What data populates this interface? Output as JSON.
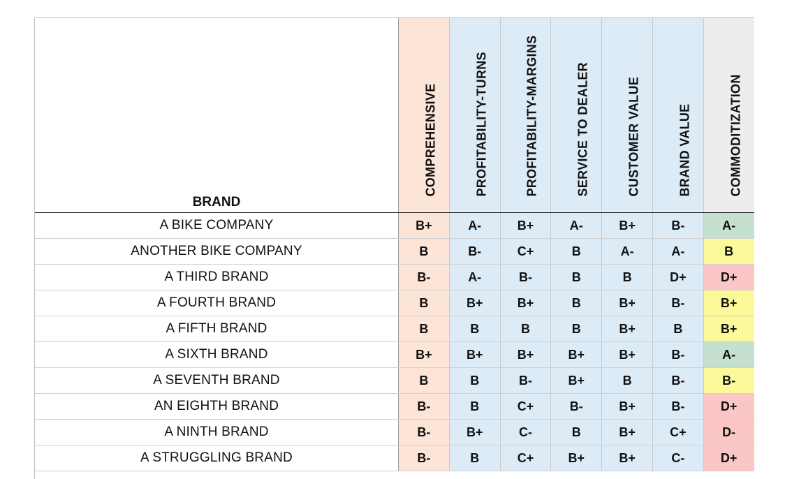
{
  "table": {
    "brand_header": "BRAND",
    "columns": [
      {
        "label": "COMPREHENSIVE",
        "bg": "#fce4d6"
      },
      {
        "label": "PROFITABILITY-TURNS",
        "bg": "#ddebf7"
      },
      {
        "label": "PROFITABILITY-MARGINS",
        "bg": "#ddebf7"
      },
      {
        "label": "SERVICE TO DEALER",
        "bg": "#ddebf7"
      },
      {
        "label": "CUSTOMER VALUE",
        "bg": "#ddebf7"
      },
      {
        "label": "BRAND VALUE",
        "bg": "#ddebf7"
      },
      {
        "label": "COMMODITIZATION",
        "bg": "#ededed"
      }
    ],
    "grade_colors": {
      "A": "#c6e0d0",
      "B": "#fbf99a",
      "D": "#fbc6c6"
    },
    "rows": [
      {
        "brand": "A BIKE COMPANY",
        "grades": [
          "B+",
          "A-",
          "B+",
          "A-",
          "B+",
          "B-",
          "A-"
        ]
      },
      {
        "brand": "ANOTHER BIKE COMPANY",
        "grades": [
          "B",
          "B-",
          "C+",
          "B",
          "A-",
          "A-",
          "B"
        ]
      },
      {
        "brand": "A THIRD BRAND",
        "grades": [
          "B-",
          "A-",
          "B-",
          "B",
          "B",
          "D+",
          "D+"
        ]
      },
      {
        "brand": "A FOURTH BRAND",
        "grades": [
          "B",
          "B+",
          "B+",
          "B",
          "B+",
          "B-",
          "B+"
        ]
      },
      {
        "brand": "A FIFTH BRAND",
        "grades": [
          "B",
          "B",
          "B",
          "B",
          "B+",
          "B",
          "B+"
        ]
      },
      {
        "brand": "A SIXTH BRAND",
        "grades": [
          "B+",
          "B+",
          "B+",
          "B+",
          "B+",
          "B-",
          "A-"
        ]
      },
      {
        "brand": "A SEVENTH BRAND",
        "grades": [
          "B",
          "B",
          "B-",
          "B+",
          "B",
          "B-",
          "B-"
        ]
      },
      {
        "brand": "AN EIGHTH BRAND",
        "grades": [
          "B-",
          "B",
          "C+",
          "B-",
          "B+",
          "B-",
          "D+"
        ]
      },
      {
        "brand": "A NINTH BRAND",
        "grades": [
          "B-",
          "B+",
          "C-",
          "B",
          "B+",
          "C+",
          "D-"
        ]
      },
      {
        "brand": "A STRUGGLING BRAND",
        "grades": [
          "B-",
          "B",
          "C+",
          "B+",
          "B+",
          "C-",
          "D+"
        ]
      }
    ]
  }
}
